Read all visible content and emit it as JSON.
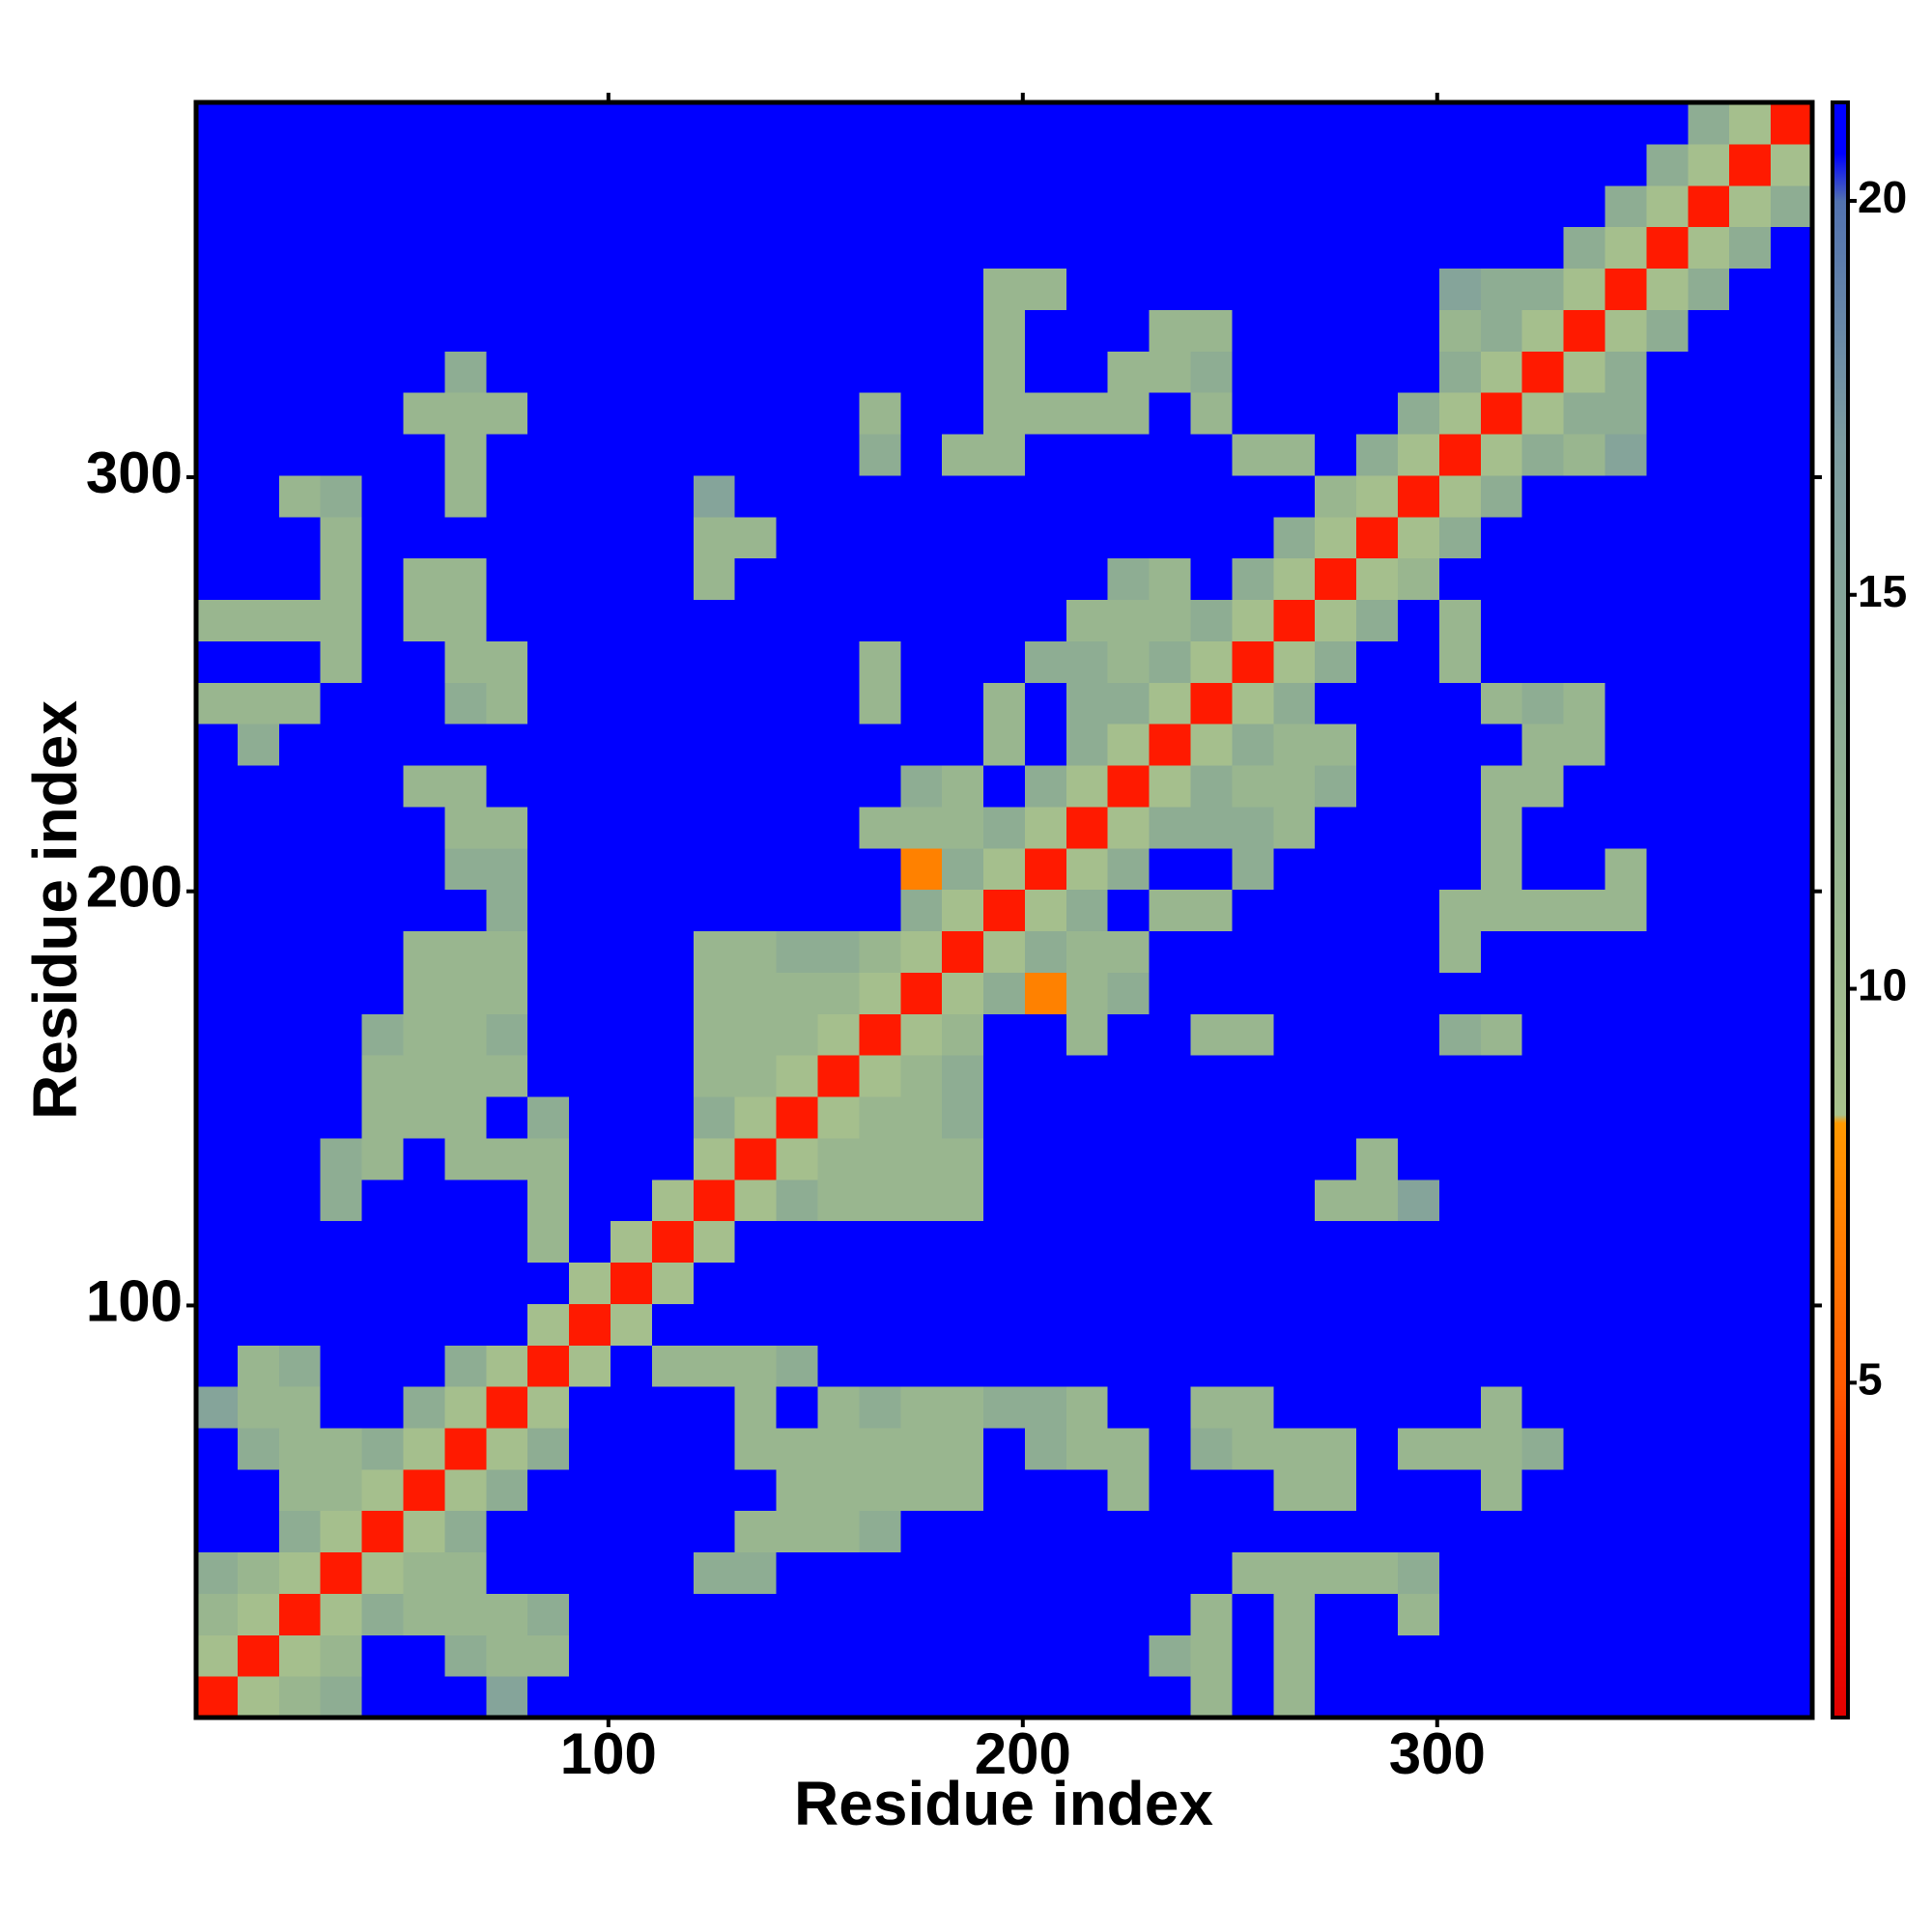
{
  "chart_data": {
    "type": "heatmap",
    "xlabel": "Residue index",
    "ylabel": "Residue index",
    "xlim": [
      0.5,
      390.5
    ],
    "ylim": [
      0.5,
      390.5
    ],
    "xticks": [
      100,
      200,
      300
    ],
    "yticks": [
      100,
      200,
      300
    ],
    "zlim": [
      0.75,
      21.25
    ],
    "zticks": [
      5,
      10,
      15,
      20
    ],
    "colorscale": [
      {
        "value": 0.75,
        "color": "#e00000"
      },
      {
        "value": 3,
        "color": "#ff1a00"
      },
      {
        "value": 5,
        "color": "#ff5a00"
      },
      {
        "value": 8.3,
        "color": "#ff9a00"
      },
      {
        "value": 8.4,
        "color": "#a9c28c"
      },
      {
        "value": 12,
        "color": "#93b290"
      },
      {
        "value": 17,
        "color": "#7b9ba0"
      },
      {
        "value": 20,
        "color": "#5272b0"
      },
      {
        "value": 20.6,
        "color": "#0000ff"
      },
      {
        "value": 21.25,
        "color": "#0000ff"
      }
    ],
    "z": [
      [
        3,
        9,
        11,
        13,
        21,
        21,
        21,
        15,
        21,
        21,
        21,
        21,
        21,
        21,
        21,
        21,
        21,
        21,
        21,
        21,
        21,
        21,
        21,
        21,
        11,
        21,
        11,
        21,
        21,
        21,
        21,
        21,
        21,
        21,
        21,
        21,
        21,
        21,
        21
      ],
      [
        9,
        3,
        9,
        11,
        21,
        21,
        13,
        11,
        11,
        21,
        21,
        21,
        21,
        21,
        21,
        21,
        21,
        21,
        21,
        21,
        21,
        21,
        21,
        13,
        11,
        21,
        11,
        21,
        21,
        21,
        21,
        21,
        21,
        21,
        21,
        21,
        21,
        21,
        21
      ],
      [
        11,
        9,
        3,
        9,
        13,
        11,
        11,
        11,
        13,
        21,
        21,
        21,
        21,
        21,
        21,
        21,
        21,
        21,
        21,
        21,
        21,
        21,
        21,
        21,
        11,
        21,
        11,
        21,
        21,
        11,
        21,
        21,
        21,
        21,
        21,
        21,
        21,
        21,
        21
      ],
      [
        13,
        11,
        9,
        3,
        9,
        11,
        11,
        21,
        21,
        21,
        21,
        21,
        13,
        13,
        21,
        21,
        21,
        21,
        21,
        21,
        21,
        21,
        21,
        21,
        21,
        11,
        11,
        11,
        11,
        13,
        21,
        21,
        21,
        21,
        21,
        21,
        21,
        21,
        21
      ],
      [
        21,
        21,
        13,
        9,
        3,
        9,
        13,
        21,
        21,
        21,
        21,
        21,
        21,
        11,
        11,
        11,
        13,
        21,
        21,
        21,
        21,
        21,
        21,
        21,
        21,
        21,
        21,
        21,
        21,
        21,
        21,
        21,
        21,
        21,
        21,
        21,
        21,
        21,
        21
      ],
      [
        21,
        21,
        11,
        11,
        9,
        3,
        9,
        13,
        21,
        21,
        21,
        21,
        21,
        21,
        11,
        11,
        11,
        11,
        11,
        21,
        21,
        21,
        11,
        21,
        21,
        21,
        11,
        11,
        21,
        21,
        21,
        11,
        21,
        21,
        21,
        21,
        21,
        21,
        21
      ],
      [
        21,
        13,
        11,
        11,
        13,
        9,
        3,
        9,
        13,
        21,
        21,
        21,
        21,
        11,
        11,
        11,
        11,
        11,
        11,
        21,
        13,
        11,
        11,
        21,
        13,
        11,
        11,
        11,
        21,
        11,
        11,
        11,
        13,
        21,
        21,
        21,
        21,
        21,
        21
      ],
      [
        15,
        11,
        11,
        21,
        21,
        13,
        9,
        3,
        9,
        21,
        21,
        21,
        21,
        11,
        21,
        11,
        13,
        11,
        11,
        13,
        13,
        11,
        21,
        21,
        11,
        11,
        21,
        21,
        21,
        21,
        21,
        11,
        21,
        21,
        21,
        21,
        21,
        21,
        21
      ],
      [
        21,
        11,
        13,
        21,
        21,
        21,
        13,
        9,
        3,
        9,
        21,
        11,
        11,
        11,
        13,
        21,
        21,
        21,
        21,
        21,
        21,
        21,
        21,
        21,
        21,
        21,
        21,
        21,
        21,
        21,
        21,
        21,
        21,
        21,
        21,
        21,
        21,
        21,
        21
      ],
      [
        21,
        21,
        21,
        21,
        21,
        21,
        21,
        21,
        9,
        3,
        9,
        21,
        21,
        21,
        21,
        21,
        21,
        21,
        21,
        21,
        21,
        21,
        21,
        21,
        21,
        21,
        21,
        21,
        21,
        21,
        21,
        21,
        21,
        21,
        21,
        21,
        21,
        21,
        21
      ],
      [
        21,
        21,
        21,
        21,
        21,
        21,
        21,
        21,
        21,
        9,
        3,
        9,
        21,
        21,
        21,
        21,
        21,
        21,
        21,
        21,
        21,
        21,
        21,
        21,
        21,
        21,
        21,
        21,
        21,
        21,
        21,
        21,
        21,
        21,
        21,
        21,
        21,
        21,
        21
      ],
      [
        21,
        21,
        21,
        21,
        21,
        21,
        21,
        21,
        11,
        21,
        9,
        3,
        9,
        21,
        21,
        21,
        21,
        21,
        21,
        21,
        21,
        21,
        21,
        21,
        21,
        21,
        21,
        21,
        21,
        21,
        21,
        21,
        21,
        21,
        21,
        21,
        21,
        21,
        21
      ],
      [
        21,
        21,
        21,
        13,
        21,
        21,
        21,
        21,
        11,
        21,
        21,
        9,
        3,
        9,
        13,
        11,
        11,
        11,
        11,
        21,
        21,
        21,
        21,
        21,
        21,
        21,
        21,
        11,
        11,
        15,
        21,
        21,
        21,
        21,
        21,
        21,
        21,
        21,
        21
      ],
      [
        21,
        21,
        21,
        13,
        11,
        21,
        11,
        11,
        11,
        21,
        21,
        21,
        9,
        3,
        9,
        11,
        11,
        11,
        11,
        21,
        21,
        21,
        21,
        21,
        21,
        21,
        21,
        21,
        11,
        21,
        21,
        21,
        21,
        21,
        21,
        21,
        21,
        21,
        21
      ],
      [
        21,
        21,
        21,
        21,
        11,
        11,
        11,
        21,
        13,
        21,
        21,
        21,
        13,
        9,
        3,
        9,
        11,
        11,
        13,
        21,
        21,
        21,
        21,
        21,
        21,
        21,
        21,
        21,
        21,
        21,
        21,
        21,
        21,
        21,
        21,
        21,
        21,
        21,
        21
      ],
      [
        21,
        21,
        21,
        21,
        11,
        11,
        11,
        11,
        21,
        21,
        21,
        21,
        11,
        11,
        9,
        3,
        9,
        11,
        13,
        21,
        21,
        21,
        21,
        21,
        21,
        21,
        21,
        21,
        21,
        21,
        21,
        21,
        21,
        21,
        21,
        21,
        21,
        21,
        21
      ],
      [
        21,
        21,
        21,
        21,
        13,
        11,
        11,
        13,
        21,
        21,
        21,
        21,
        11,
        11,
        11,
        9,
        3,
        9,
        11,
        21,
        21,
        11,
        21,
        21,
        11,
        11,
        21,
        21,
        21,
        21,
        13,
        11,
        21,
        21,
        21,
        21,
        21,
        21,
        21
      ],
      [
        21,
        21,
        21,
        21,
        21,
        11,
        11,
        11,
        21,
        21,
        21,
        21,
        11,
        11,
        11,
        11,
        9,
        3,
        9,
        13,
        7,
        11,
        13,
        21,
        21,
        21,
        21,
        21,
        21,
        21,
        21,
        21,
        21,
        21,
        21,
        21,
        21,
        21,
        21
      ],
      [
        21,
        21,
        21,
        21,
        21,
        11,
        11,
        11,
        21,
        21,
        21,
        21,
        11,
        11,
        13,
        13,
        11,
        9,
        3,
        9,
        13,
        11,
        11,
        21,
        21,
        21,
        21,
        21,
        21,
        21,
        11,
        21,
        21,
        21,
        21,
        21,
        21,
        21,
        21
      ],
      [
        21,
        21,
        21,
        21,
        21,
        21,
        21,
        13,
        21,
        21,
        21,
        21,
        21,
        21,
        21,
        21,
        21,
        13,
        9,
        3,
        9,
        13,
        21,
        11,
        11,
        21,
        21,
        21,
        21,
        21,
        11,
        11,
        11,
        11,
        11,
        21,
        21,
        21,
        21
      ],
      [
        21,
        21,
        21,
        21,
        21,
        21,
        13,
        13,
        21,
        21,
        21,
        21,
        21,
        21,
        21,
        21,
        21,
        7,
        13,
        9,
        3,
        9,
        13,
        21,
        21,
        13,
        21,
        21,
        21,
        21,
        21,
        11,
        21,
        21,
        11,
        21,
        21,
        21,
        21
      ],
      [
        21,
        21,
        21,
        21,
        21,
        21,
        11,
        11,
        21,
        21,
        21,
        21,
        21,
        21,
        21,
        21,
        11,
        11,
        11,
        13,
        9,
        3,
        9,
        13,
        13,
        13,
        11,
        21,
        21,
        21,
        21,
        11,
        21,
        21,
        21,
        21,
        21,
        21,
        21
      ],
      [
        21,
        21,
        21,
        21,
        21,
        11,
        11,
        21,
        21,
        21,
        21,
        21,
        21,
        21,
        21,
        21,
        21,
        13,
        11,
        21,
        13,
        9,
        3,
        9,
        13,
        11,
        11,
        13,
        21,
        21,
        21,
        11,
        11,
        21,
        21,
        21,
        21,
        21,
        21
      ],
      [
        21,
        13,
        21,
        21,
        21,
        21,
        21,
        21,
        21,
        21,
        21,
        21,
        21,
        21,
        21,
        21,
        21,
        21,
        21,
        11,
        21,
        13,
        9,
        3,
        9,
        13,
        11,
        11,
        21,
        21,
        21,
        21,
        11,
        11,
        21,
        21,
        21,
        21,
        21
      ],
      [
        11,
        11,
        11,
        21,
        21,
        21,
        13,
        11,
        21,
        21,
        21,
        21,
        21,
        21,
        21,
        21,
        11,
        21,
        21,
        11,
        21,
        13,
        13,
        9,
        3,
        9,
        13,
        21,
        21,
        21,
        21,
        11,
        13,
        11,
        21,
        21,
        21,
        21,
        21
      ],
      [
        21,
        21,
        21,
        11,
        21,
        21,
        11,
        11,
        21,
        21,
        21,
        21,
        21,
        21,
        21,
        21,
        11,
        21,
        21,
        21,
        13,
        13,
        11,
        13,
        9,
        3,
        9,
        13,
        21,
        21,
        11,
        21,
        21,
        21,
        21,
        21,
        21,
        21,
        21
      ],
      [
        11,
        11,
        11,
        11,
        21,
        11,
        11,
        21,
        21,
        21,
        21,
        21,
        21,
        21,
        21,
        21,
        21,
        21,
        21,
        21,
        21,
        11,
        11,
        11,
        13,
        9,
        3,
        9,
        13,
        21,
        11,
        21,
        21,
        21,
        21,
        21,
        21,
        21,
        21
      ],
      [
        21,
        21,
        21,
        11,
        21,
        11,
        11,
        21,
        21,
        21,
        21,
        21,
        11,
        21,
        21,
        21,
        21,
        21,
        21,
        21,
        21,
        21,
        13,
        11,
        21,
        13,
        9,
        3,
        9,
        11,
        21,
        21,
        21,
        21,
        21,
        21,
        21,
        21,
        21
      ],
      [
        21,
        21,
        21,
        11,
        21,
        21,
        21,
        21,
        21,
        21,
        21,
        21,
        11,
        11,
        21,
        21,
        21,
        21,
        21,
        21,
        21,
        21,
        21,
        21,
        21,
        21,
        13,
        9,
        3,
        9,
        13,
        21,
        21,
        21,
        21,
        21,
        21,
        21,
        21
      ],
      [
        21,
        21,
        11,
        13,
        21,
        21,
        11,
        21,
        21,
        21,
        21,
        21,
        15,
        21,
        21,
        21,
        21,
        21,
        21,
        21,
        21,
        21,
        21,
        21,
        21,
        21,
        21,
        11,
        9,
        3,
        9,
        13,
        21,
        21,
        21,
        21,
        21,
        21,
        21
      ],
      [
        21,
        21,
        21,
        21,
        21,
        21,
        11,
        21,
        21,
        21,
        21,
        21,
        21,
        21,
        21,
        21,
        13,
        21,
        11,
        11,
        21,
        21,
        21,
        21,
        21,
        11,
        11,
        21,
        13,
        9,
        3,
        9,
        13,
        11,
        15,
        21,
        21,
        21,
        21
      ],
      [
        21,
        21,
        21,
        21,
        21,
        11,
        11,
        11,
        21,
        21,
        21,
        21,
        21,
        21,
        21,
        21,
        11,
        21,
        21,
        11,
        11,
        11,
        11,
        21,
        11,
        21,
        21,
        21,
        21,
        13,
        9,
        3,
        9,
        13,
        13,
        21,
        21,
        21,
        21
      ],
      [
        21,
        21,
        21,
        21,
        21,
        21,
        13,
        21,
        21,
        21,
        21,
        21,
        21,
        21,
        21,
        21,
        21,
        21,
        21,
        11,
        21,
        21,
        11,
        11,
        13,
        21,
        21,
        21,
        21,
        21,
        13,
        9,
        3,
        9,
        13,
        21,
        21,
        21,
        21
      ],
      [
        21,
        21,
        21,
        21,
        21,
        21,
        21,
        21,
        21,
        21,
        21,
        21,
        21,
        21,
        21,
        21,
        21,
        21,
        21,
        11,
        21,
        21,
        21,
        11,
        11,
        21,
        21,
        21,
        21,
        21,
        11,
        13,
        9,
        3,
        9,
        13,
        21,
        21,
        21
      ],
      [
        21,
        21,
        21,
        21,
        21,
        21,
        21,
        21,
        21,
        21,
        21,
        21,
        21,
        21,
        21,
        21,
        21,
        21,
        21,
        11,
        11,
        21,
        21,
        21,
        21,
        21,
        21,
        21,
        21,
        21,
        15,
        13,
        13,
        9,
        3,
        9,
        13,
        21,
        21
      ],
      [
        21,
        21,
        21,
        21,
        21,
        21,
        21,
        21,
        21,
        21,
        21,
        21,
        21,
        21,
        21,
        21,
        21,
        21,
        21,
        21,
        21,
        21,
        21,
        21,
        21,
        21,
        21,
        21,
        21,
        21,
        21,
        21,
        21,
        13,
        9,
        3,
        9,
        13,
        21
      ],
      [
        21,
        21,
        21,
        21,
        21,
        21,
        21,
        21,
        21,
        21,
        21,
        21,
        21,
        21,
        21,
        21,
        21,
        21,
        21,
        21,
        21,
        21,
        21,
        21,
        21,
        21,
        21,
        21,
        21,
        21,
        21,
        21,
        21,
        21,
        13,
        9,
        3,
        9,
        13
      ],
      [
        21,
        21,
        21,
        21,
        21,
        21,
        21,
        21,
        21,
        21,
        21,
        21,
        21,
        21,
        21,
        21,
        21,
        21,
        21,
        21,
        21,
        21,
        21,
        21,
        21,
        21,
        21,
        21,
        21,
        21,
        21,
        21,
        21,
        21,
        21,
        13,
        9,
        3,
        9
      ],
      [
        21,
        21,
        21,
        21,
        21,
        21,
        21,
        21,
        21,
        21,
        21,
        21,
        21,
        21,
        21,
        21,
        21,
        21,
        21,
        21,
        21,
        21,
        21,
        21,
        21,
        21,
        21,
        21,
        21,
        21,
        21,
        21,
        21,
        21,
        21,
        21,
        13,
        9,
        3
      ]
    ]
  }
}
